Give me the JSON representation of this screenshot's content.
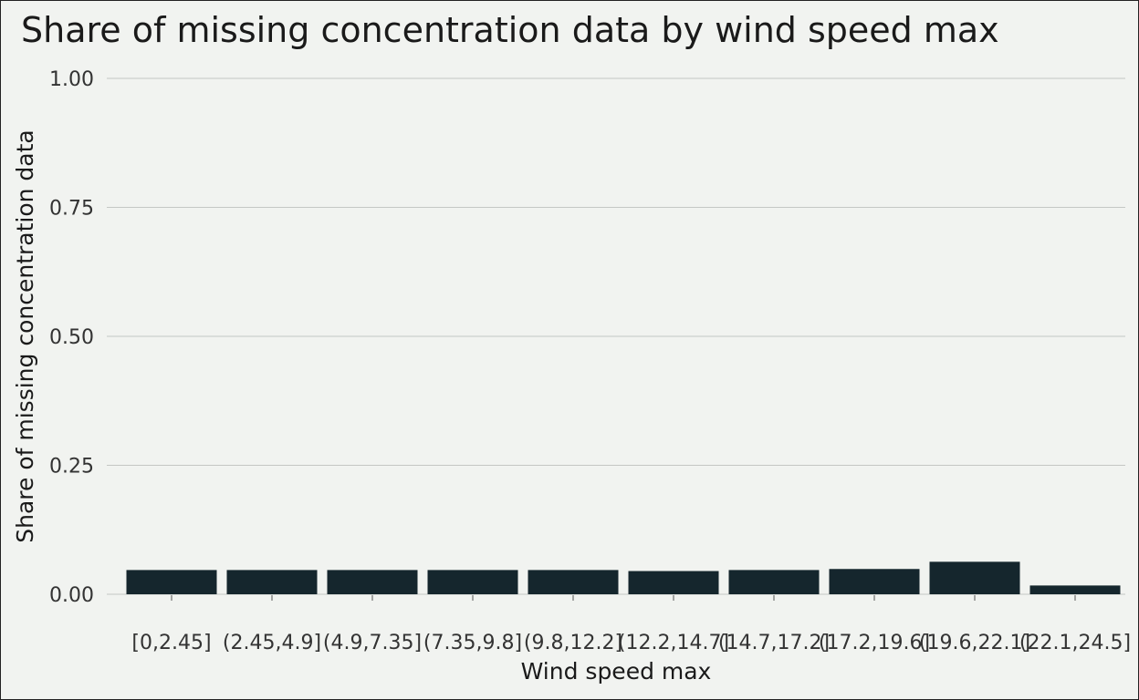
{
  "chart_data": {
    "type": "bar",
    "title": "Share of missing concentration data by wind speed max",
    "xlabel": "Wind speed max",
    "ylabel": "Share of missing concentration data",
    "categories": [
      "[0,2.45]",
      "(2.45,4.9]",
      "(4.9,7.35]",
      "(7.35,9.8]",
      "(9.8,12.2]",
      "(12.2,14.7]",
      "(14.7,17.2]",
      "(17.2,19.6]",
      "(19.6,22.1]",
      "(22.1,24.5]"
    ],
    "values": [
      0.047,
      0.047,
      0.047,
      0.047,
      0.047,
      0.045,
      0.047,
      0.049,
      0.063,
      0.017
    ],
    "ylim": [
      0,
      1
    ],
    "yticks": [
      "0.00",
      "0.25",
      "0.50",
      "0.75",
      "1.00"
    ],
    "ytick_values": [
      0,
      0.25,
      0.5,
      0.75,
      1.0
    ],
    "grid": true,
    "bar_color": "#15262d"
  }
}
